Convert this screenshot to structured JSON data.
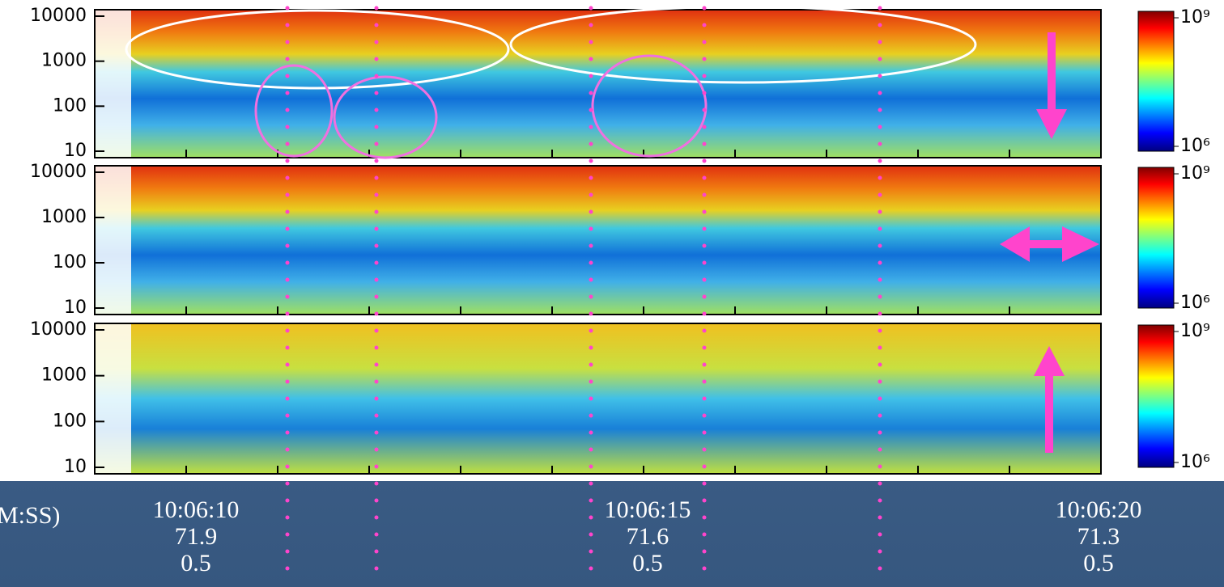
{
  "chart_data": {
    "type": "spectrogram",
    "log_y": true,
    "panels": [
      {
        "ylim": [
          10,
          10000
        ],
        "yticks": [
          10,
          100,
          1000,
          10000
        ],
        "colorbar": {
          "lim": [
            1000000,
            1000000000
          ],
          "ticks": [
            {
              "value": 1000000000,
              "label": "10⁹"
            },
            {
              "value": 1000000,
              "label": "10⁶"
            }
          ]
        }
      },
      {
        "ylim": [
          10,
          10000
        ],
        "yticks": [
          10,
          100,
          1000,
          10000
        ],
        "colorbar": {
          "lim": [
            1000000,
            1000000000
          ],
          "ticks": [
            {
              "value": 1000000000,
              "label": "10⁹"
            },
            {
              "value": 1000000,
              "label": "10⁶"
            }
          ]
        }
      },
      {
        "ylim": [
          10,
          10000
        ],
        "yticks": [
          10,
          100,
          1000,
          10000
        ],
        "colorbar": {
          "lim": [
            1000000,
            1000000000
          ],
          "ticks": [
            {
              "value": 1000000000,
              "label": "10⁹"
            },
            {
              "value": 1000000,
              "label": "10⁶"
            }
          ]
        }
      }
    ],
    "x_label": "M:SS)",
    "x_rows": [
      [
        "10:06:10",
        "10:06:15",
        "10:06:20"
      ],
      [
        71.9,
        71.6,
        71.3
      ],
      [
        0.5,
        0.5,
        0.5
      ]
    ]
  }
}
